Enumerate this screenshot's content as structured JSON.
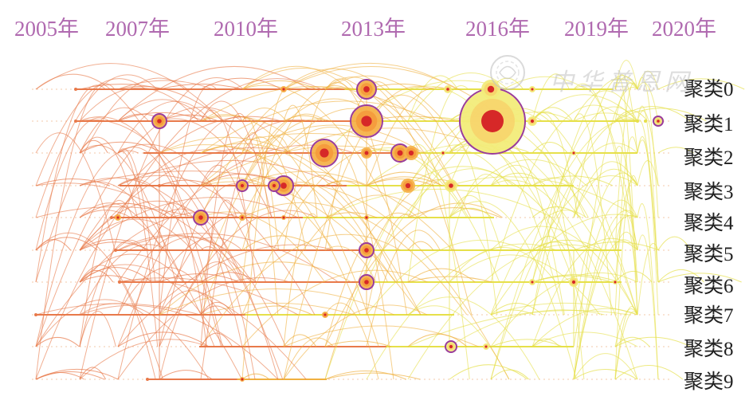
{
  "years": [
    "2005年",
    "2007年",
    "2010年",
    "2013年",
    "2016年",
    "2019年",
    "2020年"
  ],
  "clusters": [
    "聚类0",
    "聚类1",
    "聚类2",
    "聚类3",
    "聚类4",
    "聚类5",
    "聚类6",
    "聚类7",
    "聚类8",
    "聚类9"
  ],
  "watermark": "中华普恩网",
  "colors": {
    "year_label": "#b06ab0",
    "early_arc": "#e8794a",
    "mid_arc": "#f0b040",
    "late_arc": "#e6e04a",
    "node_core": "#d62828",
    "node_ring": "#9a3c9a"
  }
}
